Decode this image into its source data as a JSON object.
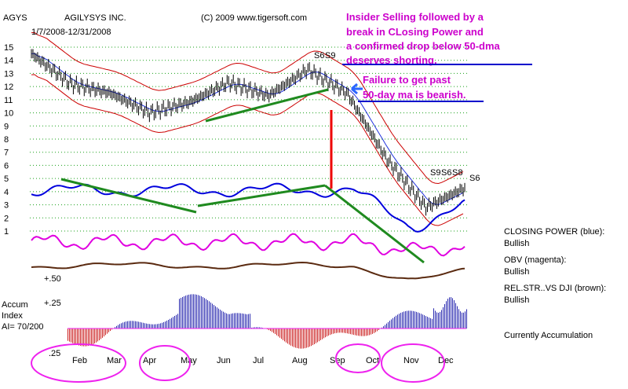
{
  "header": {
    "ticker": "AGYS",
    "company": "AGILYSYS INC.",
    "date_range": "1/7/2008-12/31/2008",
    "copyright": "(C) 2009 www.tigersoft.com"
  },
  "annotations": {
    "insider_lines": [
      "Insider Selling followed by a",
      "break in CLosing Power and",
      "a confirmed drop below 50-dma",
      "deserves shorting."
    ],
    "failure_lines": [
      "Failure to get past",
      "50-day ma is bearish."
    ],
    "sell_signals": [
      "S6",
      "S9",
      "S9",
      "S6",
      "S8",
      "S6"
    ]
  },
  "indicator_labels": {
    "closing_power": "CLOSING POWER (blue):",
    "closing_power_status": "Bullish",
    "obv": "OBV (magenta):",
    "obv_status": "Bullish",
    "relstr": "REL.STR..VS DJI (brown):",
    "relstr_status": "Bullish",
    "accum_title": "Accum",
    "accum_index": "Index",
    "accum_ai": "AI= 70/200",
    "accum_status": "Currently Accumulation",
    "plus50": "+.50",
    "plus25": "+.25",
    "p25": ".25"
  },
  "colors": {
    "price": "#000000",
    "closing_power": "#0000dd",
    "obv": "#e000e0",
    "relstr": "#5a2a10",
    "ma50": "#2233dd",
    "bands": "#cc0000",
    "trend": "#1f8a1f",
    "accum_pos": "#2a2ab0",
    "accum_neg": "#cc2222",
    "circle": "#ee22ee",
    "annotation": "#cc00cc",
    "grid": "#1aa01a"
  },
  "chart_data": {
    "type": "line",
    "title": "AGILYSYS INC.",
    "xlabel": "",
    "ylabel": "",
    "ylim": [
      1,
      15
    ],
    "y_ticks": [
      "15",
      "14",
      "13",
      "12",
      "11",
      "10",
      "9",
      "8",
      "7",
      "6",
      "5",
      "4",
      "3",
      "2",
      "1"
    ],
    "x_ticks": [
      "Feb",
      "Mar",
      "Apr",
      "May",
      "Jun",
      "Jul",
      "Aug",
      "Sep",
      "Oct",
      "Nov",
      "Dec"
    ],
    "series": [
      {
        "name": "AGYS",
        "x": [
          "Jan",
          "Feb",
          "Mar",
          "Apr",
          "May",
          "Jun",
          "Jul",
          "Aug",
          "Sep",
          "Oct",
          "Nov",
          "Dec"
        ],
        "values": [
          14.5,
          12.2,
          11.5,
          10.0,
          10.8,
          12.3,
          11.3,
          13.3,
          11.5,
          6.5,
          2.8,
          4.3
        ]
      }
    ],
    "grid": true
  }
}
